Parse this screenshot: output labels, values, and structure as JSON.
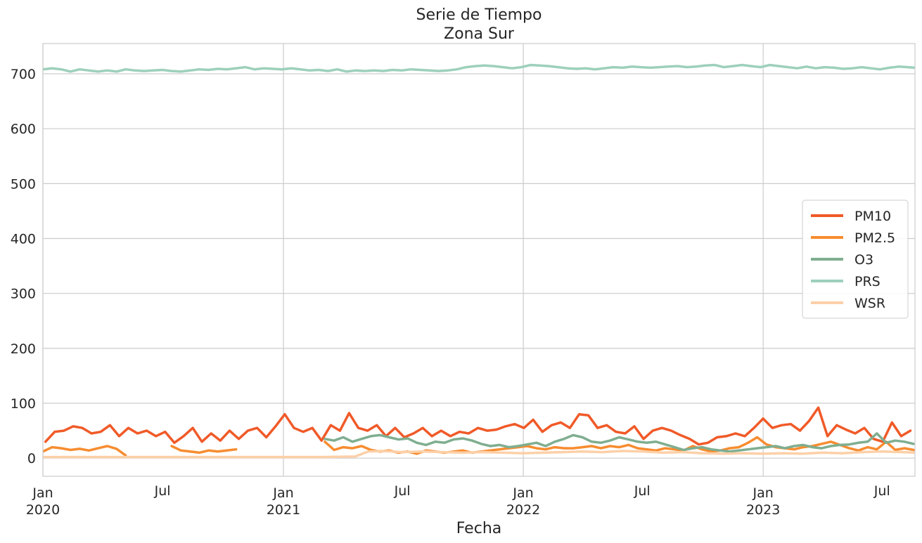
{
  "chart_data": {
    "type": "line",
    "title": "Serie de Tiempo",
    "subtitle": "Zona Sur",
    "xlabel": "Fecha",
    "ylabel": "",
    "xlim": [
      "2020-01-01",
      "2023-08-20"
    ],
    "ylim": [
      -33,
      755
    ],
    "grid": true,
    "legend_position": "center-right",
    "y_ticks": [
      "0",
      "100",
      "200",
      "300",
      "400",
      "500",
      "600",
      "700"
    ],
    "x_ticks": [
      {
        "date": "2020-01-01",
        "line1": "Jan",
        "line2": "2020"
      },
      {
        "date": "2020-07-01",
        "line1": "Jul",
        "line2": ""
      },
      {
        "date": "2021-01-01",
        "line1": "Jan",
        "line2": "2021"
      },
      {
        "date": "2021-07-01",
        "line1": "Jul",
        "line2": ""
      },
      {
        "date": "2022-01-01",
        "line1": "Jan",
        "line2": "2022"
      },
      {
        "date": "2022-07-01",
        "line1": "Jul",
        "line2": ""
      },
      {
        "date": "2023-01-01",
        "line1": "Jan",
        "line2": "2023"
      },
      {
        "date": "2023-07-01",
        "line1": "Jul",
        "line2": ""
      }
    ],
    "series": [
      {
        "name": "PM10",
        "color": "#f05a28",
        "x": [
          "2020-01-05",
          "2020-01-19",
          "2020-02-02",
          "2020-02-16",
          "2020-03-01",
          "2020-03-15",
          "2020-03-29",
          "2020-04-12",
          "2020-04-26",
          "2020-05-10",
          "2020-05-24",
          "2020-06-07",
          "2020-06-21",
          "2020-07-05",
          "2020-07-19",
          "2020-08-02",
          "2020-08-16",
          "2020-08-30",
          "2020-09-13",
          "2020-09-27",
          "2020-10-11",
          "2020-10-25",
          "2020-11-08",
          "2020-11-22",
          "2020-12-06",
          "2020-12-20",
          "2021-01-03",
          "2021-01-17",
          "2021-01-31",
          "2021-02-14",
          "2021-02-28",
          "2021-03-14",
          "2021-03-28",
          "2021-04-11",
          "2021-04-25",
          "2021-05-09",
          "2021-05-23",
          "2021-06-06",
          "2021-06-20",
          "2021-07-04",
          "2021-07-18",
          "2021-08-01",
          "2021-08-15",
          "2021-08-29",
          "2021-09-12",
          "2021-09-26",
          "2021-10-10",
          "2021-10-24",
          "2021-11-07",
          "2021-11-21",
          "2021-12-05",
          "2021-12-19",
          "2022-01-02",
          "2022-01-16",
          "2022-01-30",
          "2022-02-13",
          "2022-02-27",
          "2022-03-13",
          "2022-03-27",
          "2022-04-10",
          "2022-04-24",
          "2022-05-08",
          "2022-05-22",
          "2022-06-05",
          "2022-06-19",
          "2022-07-03",
          "2022-07-17",
          "2022-07-31",
          "2022-08-14",
          "2022-08-28",
          "2022-09-11",
          "2022-09-25",
          "2022-10-09",
          "2022-10-23",
          "2022-11-06",
          "2022-11-20",
          "2022-12-04",
          "2022-12-18",
          "2023-01-01",
          "2023-01-15",
          "2023-01-29",
          "2023-02-12",
          "2023-02-26",
          "2023-03-12",
          "2023-03-26",
          "2023-04-09",
          "2023-04-23",
          "2023-05-07",
          "2023-05-21",
          "2023-06-04",
          "2023-06-18",
          "2023-07-02",
          "2023-07-16",
          "2023-07-30",
          "2023-08-13"
        ],
        "values": [
          30,
          48,
          50,
          58,
          55,
          45,
          48,
          60,
          40,
          55,
          45,
          50,
          40,
          48,
          28,
          40,
          55,
          30,
          45,
          32,
          50,
          35,
          50,
          55,
          38,
          58,
          80,
          55,
          48,
          55,
          32,
          60,
          50,
          82,
          55,
          50,
          60,
          40,
          55,
          38,
          45,
          55,
          40,
          50,
          40,
          48,
          45,
          55,
          50,
          52,
          58,
          62,
          55,
          70,
          48,
          60,
          65,
          55,
          80,
          78,
          55,
          60,
          48,
          45,
          58,
          35,
          50,
          55,
          50,
          42,
          35,
          25,
          28,
          38,
          40,
          45,
          40,
          55,
          72,
          55,
          60,
          62,
          50,
          68,
          92,
          40,
          60,
          52,
          45,
          55,
          35,
          30,
          65,
          40,
          50
        ]
      },
      {
        "name": "PM2.5",
        "color": "#f78c30",
        "x": [
          "2020-01-01",
          "2020-01-15",
          "2020-01-29",
          "2020-02-12",
          "2020-02-26",
          "2020-03-11",
          "2020-03-25",
          "2020-04-08",
          "2020-04-22",
          "2020-05-06",
          null,
          "2020-07-15",
          "2020-07-29",
          "2020-08-12",
          "2020-08-26",
          "2020-09-09",
          "2020-09-23",
          "2020-10-07",
          "2020-10-21",
          null,
          "2021-03-05",
          "2021-03-19",
          "2021-04-02",
          "2021-04-16",
          "2021-04-30",
          "2021-05-14",
          "2021-05-28",
          "2021-06-11",
          "2021-06-25",
          "2021-07-09",
          "2021-07-23",
          "2021-08-06",
          "2021-08-20",
          "2021-09-03",
          "2021-09-17",
          "2021-10-01",
          "2021-10-15",
          "2021-10-29",
          "2021-11-12",
          "2021-11-26",
          "2021-12-10",
          "2021-12-24",
          "2022-01-07",
          "2022-01-21",
          "2022-02-04",
          "2022-02-18",
          "2022-03-04",
          "2022-03-18",
          "2022-04-01",
          "2022-04-15",
          "2022-04-29",
          "2022-05-13",
          "2022-05-27",
          "2022-06-10",
          "2022-06-24",
          "2022-07-08",
          "2022-07-22",
          "2022-08-05",
          "2022-08-19",
          "2022-09-02",
          "2022-09-16",
          "2022-09-30",
          "2022-10-14",
          "2022-10-28",
          "2022-11-11",
          "2022-11-25",
          "2022-12-09",
          "2022-12-23",
          "2023-01-06",
          "2023-01-20",
          "2023-02-03",
          "2023-02-17",
          "2023-03-03",
          "2023-03-17",
          "2023-03-31",
          "2023-04-14",
          "2023-04-28",
          "2023-05-12",
          "2023-05-26",
          "2023-06-09",
          "2023-06-23",
          "2023-07-07",
          "2023-07-21",
          "2023-08-04",
          "2023-08-18"
        ],
        "values": [
          12,
          20,
          18,
          15,
          17,
          14,
          18,
          22,
          17,
          5,
          null,
          22,
          14,
          12,
          10,
          14,
          12,
          14,
          16,
          null,
          30,
          15,
          20,
          18,
          22,
          15,
          12,
          14,
          10,
          12,
          8,
          14,
          12,
          10,
          12,
          14,
          10,
          12,
          14,
          16,
          18,
          20,
          22,
          18,
          16,
          20,
          18,
          18,
          20,
          22,
          18,
          22,
          20,
          24,
          18,
          16,
          14,
          18,
          16,
          14,
          22,
          16,
          12,
          14,
          18,
          20,
          28,
          38,
          25,
          20,
          18,
          16,
          20,
          22,
          26,
          30,
          24,
          18,
          14,
          20,
          16,
          30,
          15,
          18,
          15
        ]
      },
      {
        "name": "O3",
        "color": "#7fae90",
        "x": [
          "2021-03-05",
          "2021-03-19",
          "2021-04-02",
          "2021-04-16",
          "2021-04-30",
          "2021-05-14",
          "2021-05-28",
          "2021-06-11",
          "2021-06-25",
          "2021-07-09",
          "2021-07-23",
          "2021-08-06",
          "2021-08-20",
          "2021-09-03",
          "2021-09-17",
          "2021-10-01",
          "2021-10-15",
          "2021-10-29",
          "2021-11-12",
          "2021-11-26",
          "2021-12-10",
          "2021-12-24",
          "2022-01-07",
          "2022-01-21",
          "2022-02-04",
          "2022-02-18",
          "2022-03-04",
          "2022-03-18",
          "2022-04-01",
          "2022-04-15",
          "2022-04-29",
          "2022-05-13",
          "2022-05-27",
          "2022-06-10",
          "2022-06-24",
          "2022-07-08",
          "2022-07-22",
          "2022-08-05",
          "2022-08-19",
          "2022-09-02",
          "2022-09-16",
          "2022-09-30",
          "2022-10-14",
          "2022-10-28",
          "2022-11-11",
          "2022-11-25",
          "2022-12-09",
          "2022-12-23",
          "2023-01-06",
          "2023-01-20",
          "2023-02-03",
          "2023-02-17",
          "2023-03-03",
          "2023-03-17",
          "2023-03-31",
          "2023-04-14",
          "2023-04-28",
          "2023-05-12",
          "2023-05-26",
          "2023-06-09",
          "2023-06-23",
          "2023-07-07",
          "2023-07-21",
          "2023-08-04",
          "2023-08-18"
        ],
        "values": [
          35,
          32,
          38,
          30,
          35,
          40,
          42,
          38,
          34,
          36,
          28,
          24,
          30,
          28,
          34,
          36,
          32,
          26,
          22,
          24,
          20,
          22,
          25,
          28,
          22,
          30,
          35,
          42,
          38,
          30,
          28,
          32,
          38,
          34,
          30,
          28,
          30,
          25,
          20,
          15,
          18,
          20,
          16,
          14,
          12,
          14,
          16,
          18,
          20,
          22,
          18,
          22,
          24,
          20,
          18,
          22,
          24,
          25,
          28,
          30,
          45,
          28,
          32,
          30,
          26
        ]
      },
      {
        "name": "PRS",
        "color": "#9dd0bb",
        "x": [
          "2020-01-01",
          "2020-01-15",
          "2020-01-29",
          "2020-02-12",
          "2020-02-26",
          "2020-03-11",
          "2020-03-25",
          "2020-04-08",
          "2020-04-22",
          "2020-05-06",
          "2020-05-20",
          "2020-06-03",
          "2020-06-17",
          "2020-07-01",
          "2020-07-15",
          "2020-07-29",
          "2020-08-12",
          "2020-08-26",
          "2020-09-09",
          "2020-09-23",
          "2020-10-07",
          "2020-10-21",
          "2020-11-04",
          "2020-11-18",
          "2020-12-02",
          "2020-12-16",
          "2020-12-30",
          "2021-01-13",
          "2021-01-27",
          "2021-02-10",
          "2021-02-24",
          "2021-03-10",
          "2021-03-24",
          "2021-04-07",
          "2021-04-21",
          "2021-05-05",
          "2021-05-19",
          "2021-06-02",
          "2021-06-16",
          "2021-06-30",
          "2021-07-14",
          "2021-07-28",
          "2021-08-11",
          "2021-08-25",
          "2021-09-08",
          "2021-09-22",
          "2021-10-06",
          "2021-10-20",
          "2021-11-03",
          "2021-11-17",
          "2021-12-01",
          "2021-12-15",
          "2021-12-29",
          "2022-01-12",
          "2022-01-26",
          "2022-02-09",
          "2022-02-23",
          "2022-03-09",
          "2022-03-23",
          "2022-04-06",
          "2022-04-20",
          "2022-05-04",
          "2022-05-18",
          "2022-06-01",
          "2022-06-15",
          "2022-06-29",
          "2022-07-13",
          "2022-07-27",
          "2022-08-10",
          "2022-08-24",
          "2022-09-07",
          "2022-09-21",
          "2022-10-05",
          "2022-10-19",
          "2022-11-02",
          "2022-11-16",
          "2022-11-30",
          "2022-12-14",
          "2022-12-28",
          "2023-01-11",
          "2023-01-25",
          "2023-02-08",
          "2023-02-22",
          "2023-03-08",
          "2023-03-22",
          "2023-04-05",
          "2023-04-19",
          "2023-05-03",
          "2023-05-17",
          "2023-05-31",
          "2023-06-14",
          "2023-06-28",
          "2023-07-12",
          "2023-07-26",
          "2023-08-09",
          "2023-08-20"
        ],
        "values": [
          708,
          710,
          708,
          704,
          708,
          706,
          704,
          706,
          704,
          708,
          706,
          705,
          706,
          707,
          705,
          704,
          706,
          708,
          707,
          709,
          708,
          710,
          712,
          708,
          710,
          709,
          708,
          710,
          708,
          706,
          707,
          705,
          708,
          704,
          706,
          705,
          706,
          705,
          707,
          706,
          708,
          707,
          706,
          705,
          706,
          708,
          712,
          714,
          715,
          714,
          712,
          710,
          712,
          716,
          715,
          714,
          712,
          710,
          709,
          710,
          708,
          710,
          712,
          711,
          713,
          712,
          711,
          712,
          713,
          714,
          712,
          713,
          715,
          716,
          712,
          714,
          716,
          714,
          712,
          716,
          714,
          712,
          710,
          713,
          710,
          712,
          711,
          709,
          710,
          712,
          710,
          708,
          711,
          713,
          712,
          711
        ]
      },
      {
        "name": "WSR",
        "color": "#fdd0a8",
        "x": [
          "2020-01-01",
          "2020-06-01",
          "2020-12-01",
          "2021-03-01",
          "2021-04-20",
          "2021-05-10",
          "2021-06-01",
          "2021-07-01",
          "2021-08-01",
          "2021-09-01",
          "2021-10-01",
          "2021-11-01",
          "2021-12-01",
          "2022-01-01",
          "2022-02-01",
          "2022-03-01",
          "2022-04-01",
          "2022-05-01",
          "2022-06-01",
          "2022-07-01",
          "2022-08-01",
          "2022-09-01",
          "2022-10-01",
          "2022-11-01",
          "2022-12-01",
          "2023-01-01",
          "2023-02-01",
          "2023-03-01",
          "2023-04-01",
          "2023-05-01",
          "2023-06-01",
          "2023-07-01",
          "2023-08-01",
          "2023-08-20"
        ],
        "values": [
          2,
          2,
          2,
          2,
          3,
          12,
          13,
          11,
          12,
          11,
          10,
          11,
          10,
          9,
          10,
          11,
          12,
          11,
          13,
          12,
          10,
          11,
          9,
          8,
          9,
          8,
          9,
          8,
          10,
          9,
          11,
          12,
          11,
          10
        ]
      }
    ]
  }
}
